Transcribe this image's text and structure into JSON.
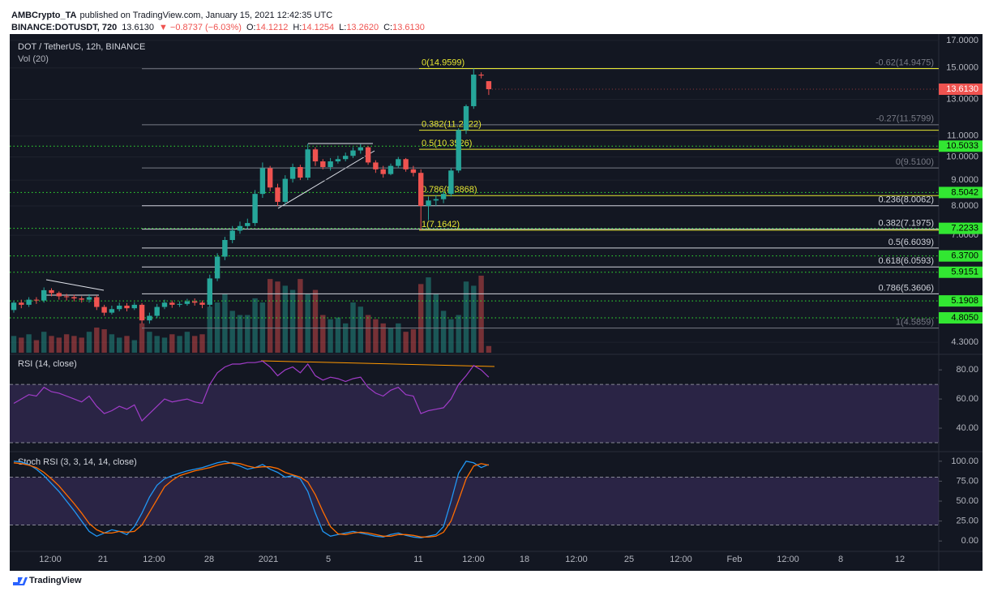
{
  "header": {
    "author": "AMBCrypto_TA",
    "published": "published on TradingView.com, January 15, 2021 12:42:35 UTC"
  },
  "footer": {
    "brand": "TradingView"
  },
  "chart_data": [
    {
      "type": "candlestick",
      "title": "DOT / TetherUS, 12h, BINANCE",
      "volume_title": "Vol (20)",
      "symbol": "BINANCE:DOTUSDT, 720",
      "last_price": {
        "value": 13.613,
        "label": "13.6130"
      },
      "change": "▼ −0.8737 (−6.03%)",
      "ohlc_legend": [
        {
          "key": "O:",
          "text": "14.1212"
        },
        {
          "key": "H:",
          "text": "14.1254"
        },
        {
          "key": "L:",
          "text": "13.2620"
        },
        {
          "key": "C:",
          "text": "13.6130"
        }
      ],
      "log_scale": true,
      "grid": true,
      "up_color": "#26a69a",
      "down_color": "#ef5350",
      "ylim": [
        4.1,
        17.5
      ],
      "yticks": [
        {
          "value": 17,
          "label": "17.0000"
        },
        {
          "value": 15,
          "label": "15.0000"
        },
        {
          "value": 13,
          "label": "13.0000"
        },
        {
          "value": 11,
          "label": "11.0000"
        },
        {
          "value": 10,
          "label": "10.0000"
        },
        {
          "value": 9,
          "label": "9.0000"
        },
        {
          "value": 8,
          "label": "8.0000"
        },
        {
          "value": 7,
          "label": "7.0000"
        },
        {
          "value": 4.3,
          "label": "4.3000"
        }
      ],
      "open": [
        4.98,
        5.15,
        5.1,
        5.22,
        5.2,
        5.45,
        5.38,
        5.3,
        5.28,
        5.25,
        5.22,
        5.28,
        5.05,
        4.92,
        5.0,
        5.08,
        5.02,
        5.1,
        4.75,
        4.85,
        5.05,
        5.15,
        5.1,
        5.12,
        5.18,
        5.15,
        5.1,
        5.75,
        6.35,
        6.85,
        7.15,
        7.3,
        7.4,
        8.45,
        9.5,
        8.7,
        8.15,
        9.05,
        9.55,
        9.1,
        10.35,
        9.8,
        9.55,
        9.8,
        9.9,
        10.05,
        10.3,
        10.45,
        9.75,
        9.45,
        9.25,
        9.6,
        9.9,
        9.45,
        9.3,
        8.0,
        8.2,
        8.25,
        8.45,
        9.4,
        11.3,
        12.6,
        14.55,
        14.1212
      ],
      "high": [
        5.2,
        5.22,
        5.28,
        5.28,
        5.52,
        5.5,
        5.42,
        5.36,
        5.34,
        5.3,
        5.35,
        5.33,
        5.1,
        5.08,
        5.15,
        5.14,
        5.16,
        5.14,
        4.92,
        5.12,
        5.22,
        5.2,
        5.18,
        5.24,
        5.25,
        5.2,
        5.85,
        6.45,
        6.95,
        7.3,
        7.45,
        7.55,
        8.6,
        9.75,
        9.6,
        8.85,
        9.2,
        9.7,
        9.65,
        10.62,
        10.45,
        9.9,
        9.95,
        10.05,
        10.2,
        10.45,
        10.6,
        10.5,
        9.85,
        9.6,
        9.7,
        10.0,
        9.95,
        9.6,
        9.45,
        8.35,
        8.4,
        8.55,
        9.5,
        11.4,
        12.7,
        14.9599,
        14.7,
        14.1254
      ],
      "low": [
        4.92,
        5.02,
        5.05,
        5.12,
        5.15,
        5.3,
        5.22,
        5.2,
        5.18,
        5.15,
        5.15,
        4.98,
        4.85,
        4.88,
        4.95,
        4.95,
        4.98,
        4.68,
        4.68,
        4.8,
        5.0,
        5.03,
        5.05,
        5.08,
        5.08,
        5.02,
        5.05,
        5.68,
        6.25,
        6.75,
        7.05,
        7.2,
        7.3,
        8.3,
        8.55,
        8.0,
        8.05,
        8.9,
        9.0,
        9.0,
        9.6,
        9.45,
        9.4,
        9.7,
        9.8,
        9.95,
        10.15,
        9.65,
        9.3,
        9.1,
        9.2,
        9.5,
        9.35,
        9.15,
        7.1642,
        7.5,
        8.0,
        8.1,
        8.35,
        9.3,
        11.1,
        12.45,
        14.3,
        13.262
      ],
      "close": [
        5.15,
        5.1,
        5.22,
        5.2,
        5.45,
        5.38,
        5.3,
        5.28,
        5.25,
        5.22,
        5.28,
        5.05,
        4.92,
        5.0,
        5.08,
        5.02,
        5.1,
        4.75,
        4.85,
        5.05,
        5.15,
        5.1,
        5.12,
        5.18,
        5.15,
        5.1,
        5.75,
        6.35,
        6.85,
        7.15,
        7.3,
        7.4,
        8.45,
        9.5,
        8.7,
        8.15,
        9.05,
        9.55,
        9.1,
        10.35,
        9.8,
        9.55,
        9.8,
        9.9,
        10.05,
        10.3,
        10.45,
        9.75,
        9.45,
        9.25,
        9.6,
        9.9,
        9.45,
        9.3,
        8.0,
        8.2,
        8.25,
        8.45,
        9.4,
        11.3,
        12.6,
        14.55,
        14.4867,
        13.613
      ],
      "volume": [
        20,
        18,
        22,
        15,
        25,
        20,
        18,
        22,
        20,
        18,
        25,
        30,
        28,
        22,
        18,
        20,
        15,
        35,
        25,
        20,
        18,
        22,
        20,
        25,
        20,
        22,
        55,
        60,
        70,
        50,
        45,
        45,
        65,
        60,
        88,
        85,
        80,
        75,
        88,
        70,
        75,
        45,
        40,
        42,
        35,
        60,
        55,
        45,
        40,
        35,
        30,
        35,
        25,
        28,
        82,
        90,
        70,
        50,
        40,
        45,
        85,
        80,
        92,
        8
      ],
      "price_line_color": "#32e632",
      "price_lines": [
        {
          "value": 10.5033,
          "label": "10.5033"
        },
        {
          "value": 8.5042,
          "label": "8.5042"
        },
        {
          "value": 7.2233,
          "label": "7.2233"
        },
        {
          "value": 6.37,
          "label": "6.3700"
        },
        {
          "value": 5.9151,
          "label": "5.9151"
        },
        {
          "value": 5.1908,
          "label": "5.1908"
        },
        {
          "value": 4.805,
          "label": "4.8050"
        }
      ],
      "fib_retracements": [
        {
          "levels": [
            {
              "label": "-0.62(14.9475)",
              "value": 14.9475,
              "color": "#787b86"
            },
            {
              "label": "-0.27(11.5799)",
              "value": 11.5799,
              "color": "#787b86"
            },
            {
              "label": "0(9.5100)",
              "value": 9.51,
              "color": "#787b86"
            },
            {
              "label": "0.236(8.0062)",
              "value": 8.0062,
              "color": "#d1d4dc"
            },
            {
              "label": "0.382(7.1975)",
              "value": 7.1975,
              "color": "#d1d4dc"
            },
            {
              "label": "0.5(6.6039)",
              "value": 6.6039,
              "color": "#d1d4dc"
            },
            {
              "label": "0.618(6.0593)",
              "value": 6.0593,
              "color": "#d1d4dc"
            },
            {
              "label": "0.786(5.3606)",
              "value": 5.3606,
              "color": "#d1d4dc"
            },
            {
              "label": "1(4.5859)",
              "value": 4.5859,
              "color": "#787b86"
            }
          ]
        },
        {
          "levels": [
            {
              "label": "0(14.9599)",
              "value": 14.9599,
              "color": "#e6e632"
            },
            {
              "label": "0.382(11.2922)",
              "value": 11.2922,
              "color": "#e6e632"
            },
            {
              "label": "0.5(10.3526)",
              "value": 10.3526,
              "color": "#e6e632"
            },
            {
              "label": "0.786(8.3868)",
              "value": 8.3868,
              "color": "#e6e632"
            },
            {
              "label": "1(7.1642)",
              "value": 7.1642,
              "color": "#e6e632"
            }
          ]
        }
      ]
    },
    {
      "type": "line",
      "title": "RSI (14, close)",
      "color": "#a03cc8",
      "band": [
        30,
        70
      ],
      "band_color": "#7e57c2",
      "ylim": [
        25,
        89
      ],
      "yticks": [
        {
          "value": 80,
          "label": "80.00"
        },
        {
          "value": 60,
          "label": "60.00"
        },
        {
          "value": 40,
          "label": "40.00"
        }
      ],
      "values": [
        57,
        60,
        63,
        62,
        68,
        65,
        64,
        62,
        60,
        58,
        62,
        55,
        50,
        52,
        55,
        53,
        56,
        45,
        50,
        55,
        60,
        58,
        59,
        60,
        58,
        57,
        70,
        78,
        82,
        84,
        84,
        85,
        85,
        86,
        82,
        76,
        80,
        82,
        78,
        84,
        76,
        73,
        75,
        74,
        72,
        74,
        75,
        68,
        64,
        62,
        66,
        68,
        63,
        62,
        50,
        52,
        53,
        54,
        60,
        70,
        76,
        83,
        80,
        75
      ]
    },
    {
      "type": "line",
      "title": "Stoch RSI (3, 3, 14, 14, close)",
      "band": [
        20,
        80
      ],
      "band_color": "#7e57c2",
      "ylim": [
        -13,
        109
      ],
      "yticks": [
        {
          "value": 100,
          "label": "100.00"
        },
        {
          "value": 75,
          "label": "75.00"
        },
        {
          "value": 50,
          "label": "50.00"
        },
        {
          "value": 25,
          "label": "25.00"
        },
        {
          "value": 0,
          "label": "0.00"
        }
      ],
      "series": [
        {
          "color": "#2196f3",
          "values": [
            100,
            99,
            96,
            90,
            82,
            72,
            62,
            50,
            38,
            25,
            12,
            6,
            10,
            14,
            12,
            8,
            18,
            35,
            55,
            70,
            78,
            82,
            85,
            88,
            90,
            92,
            95,
            98,
            100,
            97,
            94,
            90,
            92,
            96,
            90,
            86,
            80,
            82,
            78,
            62,
            35,
            12,
            6,
            8,
            10,
            12,
            10,
            8,
            6,
            5,
            8,
            10,
            7,
            5,
            4,
            6,
            8,
            18,
            50,
            85,
            100,
            98,
            92,
            96
          ]
        },
        {
          "color": "#ff6d00",
          "values": [
            98,
            97,
            95,
            92,
            86,
            78,
            69,
            58,
            47,
            35,
            22,
            14,
            10,
            10,
            12,
            11,
            12,
            20,
            36,
            52,
            68,
            76,
            82,
            85,
            88,
            90,
            92,
            95,
            97,
            98,
            97,
            94,
            92,
            93,
            93,
            91,
            86,
            83,
            80,
            74,
            58,
            37,
            18,
            9,
            8,
            10,
            11,
            10,
            8,
            6,
            6,
            8,
            8,
            7,
            5,
            5,
            6,
            11,
            25,
            51,
            78,
            94,
            97,
            95
          ]
        }
      ],
      "xtick_labels": [
        "12:00",
        "21",
        "12:00",
        "28",
        "2021",
        "5",
        "11",
        "12:00",
        "18",
        "12:00",
        "25",
        "12:00",
        "Feb",
        "12:00",
        "8",
        "12"
      ]
    }
  ]
}
